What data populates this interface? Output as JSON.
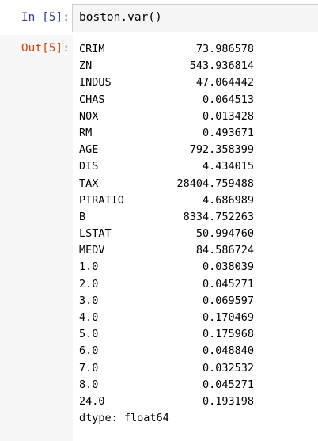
{
  "input_cell": {
    "prompt": "In [5]:",
    "code": "boston.var()"
  },
  "output_cell": {
    "prompt": "Out[5]:",
    "rows": [
      {
        "key": "CRIM",
        "value": "73.986578"
      },
      {
        "key": "ZN",
        "value": "543.936814"
      },
      {
        "key": "INDUS",
        "value": "47.064442"
      },
      {
        "key": "CHAS",
        "value": "0.064513"
      },
      {
        "key": "NOX",
        "value": "0.013428"
      },
      {
        "key": "RM",
        "value": "0.493671"
      },
      {
        "key": "AGE",
        "value": "792.358399"
      },
      {
        "key": "DIS",
        "value": "4.434015"
      },
      {
        "key": "TAX",
        "value": "28404.759488"
      },
      {
        "key": "PTRATIO",
        "value": "4.686989"
      },
      {
        "key": "B",
        "value": "8334.752263"
      },
      {
        "key": "LSTAT",
        "value": "50.994760"
      },
      {
        "key": "MEDV",
        "value": "84.586724"
      },
      {
        "key": "1.0",
        "value": "0.038039"
      },
      {
        "key": "2.0",
        "value": "0.045271"
      },
      {
        "key": "3.0",
        "value": "0.069597"
      },
      {
        "key": "4.0",
        "value": "0.170469"
      },
      {
        "key": "5.0",
        "value": "0.175968"
      },
      {
        "key": "6.0",
        "value": "0.048840"
      },
      {
        "key": "7.0",
        "value": "0.032532"
      },
      {
        "key": "8.0",
        "value": "0.045271"
      },
      {
        "key": "24.0",
        "value": "0.193198"
      }
    ],
    "dtype": "dtype: float64"
  }
}
